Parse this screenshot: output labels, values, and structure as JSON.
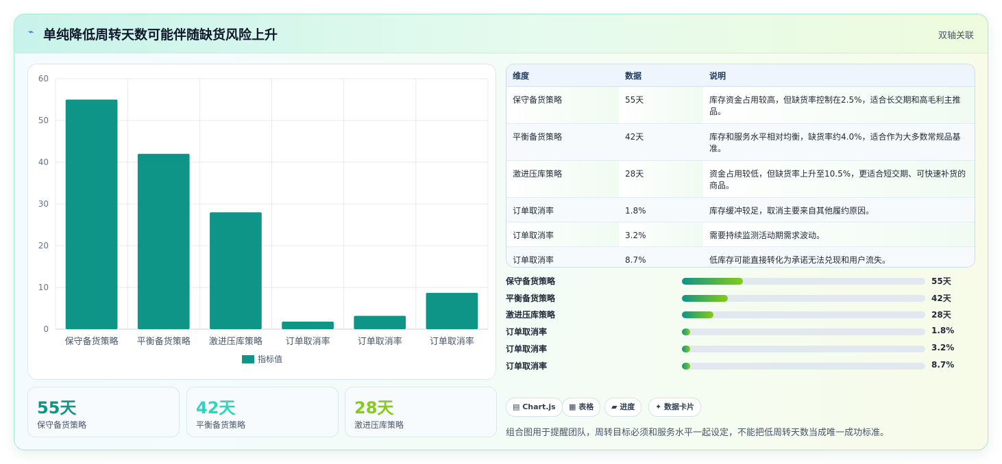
{
  "header": {
    "title": "单纯降低周转天数可能伴随缺货风险上升",
    "tag": "双轴关联",
    "icon": "lightning-icon"
  },
  "chart_data": {
    "type": "bar",
    "categories": [
      "保守备货策略",
      "平衡备货策略",
      "激进压库策略",
      "订单取消率",
      "订单取消率",
      "订单取消率"
    ],
    "series": [
      {
        "name": "指标值",
        "values": [
          55,
          42,
          28,
          1.8,
          3.2,
          8.7
        ]
      }
    ],
    "yticks": [
      "0",
      "10",
      "20",
      "30",
      "40",
      "50",
      "60"
    ],
    "ylim": [
      0,
      60
    ],
    "grid": true,
    "legend": "bottom",
    "color": "#0f9488"
  },
  "stats": [
    {
      "value": "55天",
      "label": "保守备货策略",
      "color": "#0f9488"
    },
    {
      "value": "42天",
      "label": "平衡备货策略",
      "color": "#2dd4bf"
    },
    {
      "value": "28天",
      "label": "激进压库策略",
      "color": "#84cc16"
    }
  ],
  "table": {
    "headers": [
      "维度",
      "数据",
      "说明"
    ],
    "rows": [
      [
        "保守备货策略",
        "55天",
        "库存资金占用较高，但缺货率控制在2.5%，适合长交期和高毛利主推品。"
      ],
      [
        "平衡备货策略",
        "42天",
        "库存和服务水平相对均衡，缺货率约4.0%，适合作为大多数常规品基准。"
      ],
      [
        "激进压库策略",
        "28天",
        "资金占用较低，但缺货率上升至10.5%，更适合短交期、可快速补货的商品。"
      ],
      [
        "订单取消率",
        "1.8%",
        "库存缓冲较足，取消主要来自其他履约原因。"
      ],
      [
        "订单取消率",
        "3.2%",
        "需要持续监测活动期需求波动。"
      ],
      [
        "订单取消率",
        "8.7%",
        "低库存可能直接转化为承诺无法兑现和用户流失。"
      ]
    ]
  },
  "progress": [
    {
      "label": "保守备货策略",
      "value": "55天",
      "fraction": 0.25
    },
    {
      "label": "平衡备货策略",
      "value": "42天",
      "fraction": 0.19
    },
    {
      "label": "激进压库策略",
      "value": "28天",
      "fraction": 0.13
    },
    {
      "label": "订单取消率",
      "value": "1.8%",
      "fraction": 0.035
    },
    {
      "label": "订单取消率",
      "value": "3.2%",
      "fraction": 0.035
    },
    {
      "label": "订单取消率",
      "value": "8.7%",
      "fraction": 0.035
    }
  ],
  "chips": [
    "▤ Chart.js",
    "▦ 表格",
    "▰ 进度",
    "✦ 数据卡片"
  ],
  "note": "组合图用于提醒团队，周转目标必须和服务水平一起设定，不能把低周转天数当成唯一成功标准。"
}
